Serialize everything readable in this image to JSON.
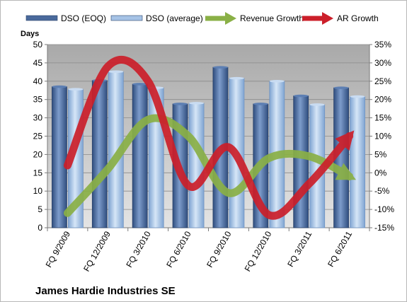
{
  "chart_data": {
    "type": "bar",
    "title": "James Hardie Industries SE",
    "ylabel": "Days",
    "categories": [
      "FQ 9/2009",
      "FQ 12/2009",
      "FQ 3/2010",
      "FQ 6/2010",
      "FQ 9/2010",
      "FQ 12/2010",
      "FQ 3/2011",
      "FQ 6/2011"
    ],
    "ylim": [
      0,
      50
    ],
    "y_ticks": [
      "0",
      "5",
      "10",
      "15",
      "20",
      "25",
      "30",
      "35",
      "40",
      "45",
      "50"
    ],
    "y2lim": [
      -15,
      35
    ],
    "y2_ticks": [
      "-15%",
      "-10%",
      "-5%",
      "0%",
      "5%",
      "10%",
      "15%",
      "20%",
      "25%",
      "30%",
      "35%"
    ],
    "legend_position": "top",
    "grid": true,
    "bar_series": [
      {
        "name": "DSO (EOQ)",
        "color": "#4a6a9c",
        "values": [
          38.5,
          40.2,
          39.2,
          33.8,
          43.8,
          33.8,
          36.0,
          38.2
        ]
      },
      {
        "name": "DSO (average)",
        "color": "#a6c3e6",
        "values": [
          37.8,
          42.6,
          38.2,
          34.0,
          40.8,
          40.0,
          33.6,
          35.8
        ]
      }
    ],
    "line_series": [
      {
        "name": "Revenue Growth",
        "color": "#8ab046",
        "axis": "right",
        "values": [
          -11.0,
          1.0,
          14.5,
          10.0,
          -5.5,
          4.0,
          4.5,
          -1.0
        ]
      },
      {
        "name": "AR Growth",
        "color": "#cc1f2a",
        "axis": "right",
        "values": [
          2.0,
          29.0,
          25.0,
          -3.5,
          7.0,
          -11.5,
          -3.0,
          10.0
        ]
      }
    ]
  }
}
